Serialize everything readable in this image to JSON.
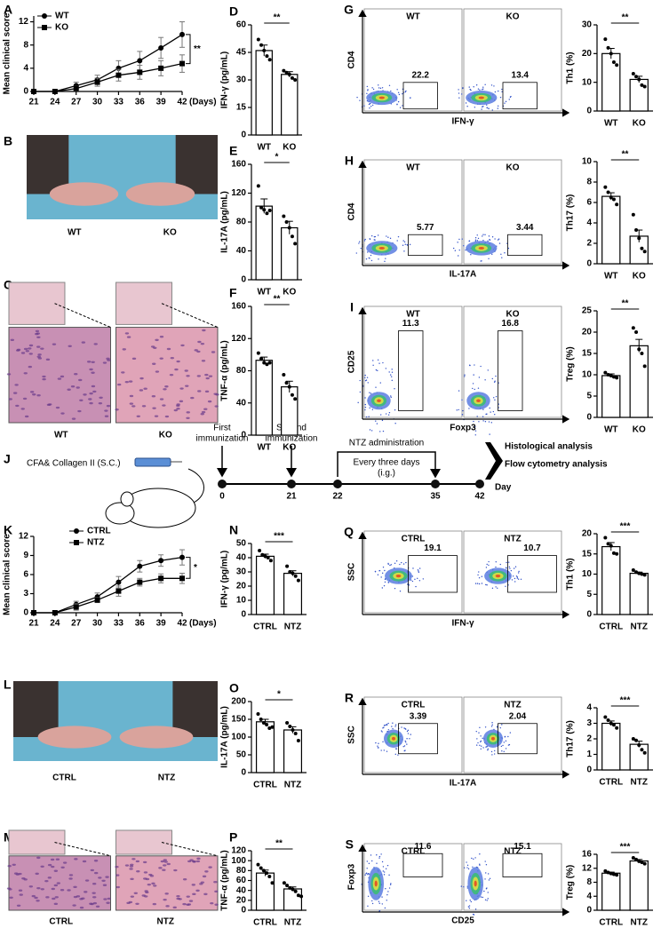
{
  "chart_data": [
    {
      "type": "line",
      "panel": "A",
      "ylabel": "Mean clinical score",
      "xlabel": "(Days)",
      "x": [
        21,
        24,
        27,
        30,
        33,
        36,
        39,
        42
      ],
      "xlim": [
        21,
        42
      ],
      "xticks": [
        21,
        24,
        27,
        30,
        33,
        36,
        39,
        42
      ],
      "ylim": [
        0,
        13
      ],
      "yticks": [
        0,
        4,
        8,
        12
      ],
      "annotation": "**",
      "series": [
        {
          "name": "WT",
          "marker": "circle",
          "values": [
            0,
            0,
            1,
            2,
            4,
            5.3,
            7.5,
            9.8
          ],
          "errors": [
            0,
            0,
            0.6,
            0.8,
            1.3,
            1.6,
            1.8,
            2.2
          ]
        },
        {
          "name": "KO",
          "marker": "square",
          "values": [
            0,
            0,
            0.5,
            1.6,
            2.8,
            3.3,
            4,
            4.8
          ],
          "errors": [
            0,
            0,
            0.4,
            0.7,
            1,
            1.2,
            1.3,
            1.5
          ]
        }
      ]
    },
    {
      "type": "bar",
      "panel": "D",
      "ylabel": "IFN-γ (pg/mL)",
      "categories": [
        "WT",
        "KO"
      ],
      "values": [
        46,
        33
      ],
      "errors": [
        3,
        1.5
      ],
      "points": [
        [
          52,
          49,
          46,
          43,
          41
        ],
        [
          35,
          34,
          33,
          31,
          30
        ]
      ],
      "ylim": [
        0,
        60
      ],
      "yticks": [
        0,
        15,
        30,
        45,
        60
      ],
      "annotation": "**"
    },
    {
      "type": "bar",
      "panel": "E",
      "ylabel": "IL-17A (pg/mL)",
      "categories": [
        "WT",
        "KO"
      ],
      "values": [
        102,
        72
      ],
      "errors": [
        10,
        9
      ],
      "points": [
        [
          130,
          100,
          97,
          92,
          96
        ],
        [
          88,
          80,
          72,
          60,
          50
        ]
      ],
      "ylim": [
        0,
        160
      ],
      "yticks": [
        0,
        40,
        80,
        120,
        160
      ],
      "annotation": "*"
    },
    {
      "type": "bar",
      "panel": "F",
      "ylabel": "TNF-α (pg/mL)",
      "categories": [
        "WT",
        "KO"
      ],
      "values": [
        93,
        60
      ],
      "errors": [
        4,
        7
      ],
      "points": [
        [
          102,
          95,
          90,
          88,
          90
        ],
        [
          75,
          65,
          60,
          50,
          45
        ]
      ],
      "ylim": [
        0,
        160
      ],
      "yticks": [
        0,
        40,
        80,
        120,
        160
      ],
      "annotation": "**"
    },
    {
      "type": "bar",
      "ylabel": "Th1 (%)",
      "categories": [
        "WT",
        "KO"
      ],
      "values": [
        20,
        11
      ],
      "errors": [
        1.8,
        1.1
      ],
      "points": [
        [
          25,
          22,
          20,
          17,
          16
        ],
        [
          13,
          12,
          11,
          9,
          8.5
        ]
      ],
      "ylim": [
        0,
        30
      ],
      "yticks": [
        0,
        10,
        20,
        30
      ],
      "annotation": "**"
    },
    {
      "type": "bar",
      "ylabel": "Th17 (%)",
      "categories": [
        "WT",
        "KO"
      ],
      "values": [
        6.6,
        2.7
      ],
      "errors": [
        0.35,
        0.6
      ],
      "points": [
        [
          7.5,
          7,
          6.5,
          6.3,
          5.8
        ],
        [
          4.8,
          3.3,
          2.5,
          1.5,
          1.2
        ]
      ],
      "ylim": [
        0,
        10
      ],
      "yticks": [
        0,
        2,
        4,
        6,
        8,
        10
      ],
      "annotation": "**"
    },
    {
      "type": "bar",
      "ylabel": "Treg (%)",
      "categories": [
        "WT",
        "KO"
      ],
      "values": [
        9.8,
        16.8
      ],
      "errors": [
        0.4,
        1.5
      ],
      "points": [
        [
          10.5,
          10,
          9.8,
          9.5,
          9.3
        ],
        [
          21,
          20,
          16,
          15,
          12
        ]
      ],
      "ylim": [
        0,
        25
      ],
      "yticks": [
        0,
        5,
        10,
        15,
        20,
        25
      ],
      "annotation": "**"
    },
    {
      "type": "line",
      "panel": "K",
      "ylabel": "Mean clinical score",
      "xlabel": "(Days)",
      "x": [
        21,
        24,
        27,
        30,
        33,
        36,
        39,
        42
      ],
      "xlim": [
        21,
        42
      ],
      "xticks": [
        21,
        24,
        27,
        30,
        33,
        36,
        39,
        42
      ],
      "ylim": [
        0,
        12
      ],
      "yticks": [
        0,
        3,
        6,
        9,
        12
      ],
      "annotation": "*",
      "series": [
        {
          "name": "CTRL",
          "marker": "circle",
          "values": [
            0,
            0,
            1.3,
            2.5,
            4.8,
            7.3,
            8.2,
            8.7
          ],
          "errors": [
            0,
            0,
            0.5,
            0.6,
            0.9,
            0.9,
            0.9,
            1.2
          ]
        },
        {
          "name": "NTZ",
          "marker": "square",
          "values": [
            0,
            0,
            0.9,
            2,
            3.4,
            4.8,
            5.4,
            5.4
          ],
          "errors": [
            0,
            0,
            0.5,
            0.4,
            0.8,
            0.6,
            0.7,
            0.8
          ]
        }
      ]
    },
    {
      "type": "bar",
      "panel": "N",
      "ylabel": "IFN-γ (pg/mL)",
      "categories": [
        "CTRL",
        "NTZ"
      ],
      "values": [
        41,
        29
      ],
      "errors": [
        1.5,
        1.8
      ],
      "points": [
        [
          45,
          42,
          41,
          40,
          38
        ],
        [
          34,
          30,
          29,
          27,
          24
        ]
      ],
      "ylim": [
        0,
        50
      ],
      "yticks": [
        0,
        10,
        20,
        30,
        40,
        50
      ],
      "annotation": "***"
    },
    {
      "type": "bar",
      "panel": "O",
      "ylabel": "IL-17A (pg/mL)",
      "categories": [
        "CTRL",
        "NTZ"
      ],
      "values": [
        143,
        120
      ],
      "errors": [
        7,
        9
      ],
      "points": [
        [
          165,
          150,
          140,
          135,
          125,
          128
        ],
        [
          140,
          130,
          120,
          110,
          90
        ]
      ],
      "ylim": [
        0,
        200
      ],
      "yticks": [
        0,
        50,
        100,
        150,
        200
      ],
      "annotation": "*"
    },
    {
      "type": "bar",
      "panel": "P",
      "ylabel": "TNF-α (pg/mL)",
      "categories": [
        "CTRL",
        "NTZ"
      ],
      "values": [
        75,
        43
      ],
      "errors": [
        6,
        4
      ],
      "points": [
        [
          92,
          85,
          80,
          75,
          68,
          55
        ],
        [
          55,
          50,
          45,
          42,
          38,
          30,
          28
        ]
      ],
      "ylim": [
        0,
        120
      ],
      "yticks": [
        0,
        20,
        40,
        60,
        80,
        100,
        120
      ],
      "annotation": "**"
    },
    {
      "type": "bar",
      "ylabel": "Th1  (%)",
      "categories": [
        "CTRL",
        "NTZ"
      ],
      "values": [
        16.8,
        10.2
      ],
      "errors": [
        1,
        0.3
      ],
      "points": [
        [
          19,
          17.5,
          17,
          15.2,
          15
        ],
        [
          11,
          10.5,
          10.2,
          10,
          9.8
        ]
      ],
      "ylim": [
        0,
        20
      ],
      "yticks": [
        0,
        5,
        10,
        15,
        20
      ],
      "annotation": "***"
    },
    {
      "type": "bar",
      "ylabel": "Th17  (%)",
      "categories": [
        "CTRL",
        "NTZ"
      ],
      "values": [
        3.0,
        1.65
      ],
      "errors": [
        0.15,
        0.2
      ],
      "points": [
        [
          3.4,
          3.2,
          3,
          2.9,
          2.7
        ],
        [
          2,
          1.9,
          1.6,
          1.3,
          1.1
        ]
      ],
      "ylim": [
        0,
        4
      ],
      "yticks": [
        0,
        1,
        2,
        3,
        4
      ],
      "annotation": "***"
    },
    {
      "type": "bar",
      "ylabel": "Treg (%)",
      "categories": [
        "CTRL",
        "NTZ"
      ],
      "values": [
        10.6,
        14.1
      ],
      "errors": [
        0.3,
        0.4
      ],
      "points": [
        [
          11.2,
          10.8,
          10.5,
          10.3,
          10.1
        ],
        [
          15,
          14.5,
          14,
          13.7,
          13.3
        ]
      ],
      "ylim": [
        0,
        16
      ],
      "yticks": [
        0,
        4,
        8,
        12,
        16
      ],
      "annotation": "***"
    }
  ],
  "flow": [
    {
      "panel": "G",
      "groups": [
        "WT",
        "KO"
      ],
      "gates": [
        "22.2",
        "13.4"
      ],
      "xlabel": "IFN-γ",
      "ylabel": "CD4"
    },
    {
      "panel": "H",
      "groups": [
        "WT",
        "KO"
      ],
      "gates": [
        "5.77",
        "3.44"
      ],
      "xlabel": "IL-17A",
      "ylabel": "CD4"
    },
    {
      "panel": "I",
      "groups": [
        "WT",
        "KO"
      ],
      "gates": [
        "11.3",
        "16.8"
      ],
      "xlabel": "Foxp3",
      "ylabel": "CD25"
    },
    {
      "panel": "Q",
      "groups": [
        "CTRL",
        "NTZ"
      ],
      "gates": [
        "19.1",
        "10.7"
      ],
      "xlabel": "IFN-γ",
      "ylabel": "SSC"
    },
    {
      "panel": "R",
      "groups": [
        "CTRL",
        "NTZ"
      ],
      "gates": [
        "3.39",
        "2.04"
      ],
      "xlabel": "IL-17A",
      "ylabel": "SSC"
    },
    {
      "panel": "S",
      "groups": [
        "CTRL",
        "NTZ"
      ],
      "gates": [
        "11.6",
        "15.1"
      ],
      "xlabel": "CD25",
      "ylabel": "Foxp3"
    }
  ],
  "photos": [
    {
      "panel": "B",
      "labels": [
        "WT",
        "KO"
      ]
    },
    {
      "panel": "C",
      "labels": [
        "WT",
        "KO"
      ]
    },
    {
      "panel": "L",
      "labels": [
        "CTRL",
        "NTZ"
      ]
    },
    {
      "panel": "M",
      "labels": [
        "CTRL",
        "NTZ"
      ]
    }
  ],
  "schematic": {
    "panel": "J",
    "injection": "CFA& Collagen II (S.C.)",
    "first": [
      "First",
      "immunization"
    ],
    "second": [
      "Second",
      "immunization"
    ],
    "treatment": "NTZ  administration",
    "interval": "Every three days",
    "route": "(i.g.)",
    "days": [
      "0",
      "21",
      "22",
      "35",
      "42"
    ],
    "day_label": "Day",
    "outcomes": [
      "Histological analysis",
      "Flow cytometry analysis"
    ]
  }
}
